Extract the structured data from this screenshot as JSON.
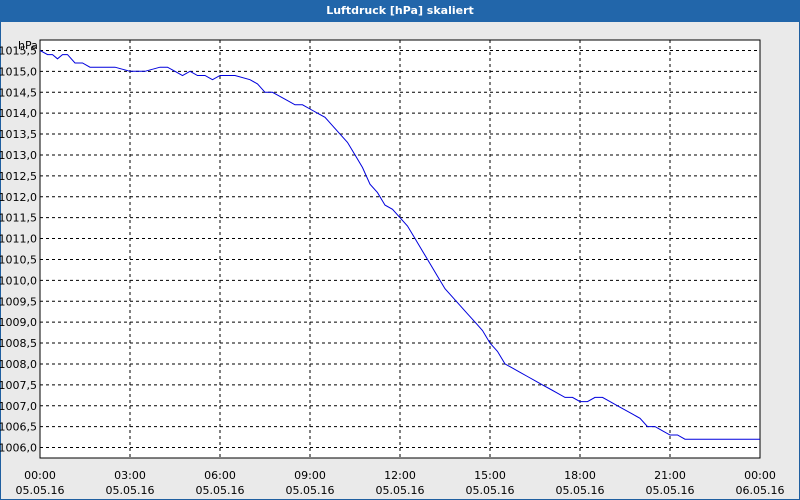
{
  "window": {
    "title": "Luftdruck [hPa] skaliert"
  },
  "chart_data": {
    "type": "line",
    "title": "Luftdruck [hPa] skaliert",
    "ylabel": "hPa",
    "xlabel": "",
    "ylim": [
      1005.75,
      1015.75
    ],
    "xlim": [
      "05.05.16 00:00",
      "06.05.16 00:00"
    ],
    "grid": true,
    "y_ticks": [
      "1006,0",
      "1006,5",
      "1007,0",
      "1007,5",
      "1008,0",
      "1008,5",
      "1009,0",
      "1009,5",
      "1010,0",
      "1010,5",
      "1011,0",
      "1011,5",
      "1012,0",
      "1012,5",
      "1013,0",
      "1013,5",
      "1014,0",
      "1014,5",
      "1015,0",
      "1015,5"
    ],
    "x_ticks": [
      {
        "time": "00:00",
        "date": "05.05.16"
      },
      {
        "time": "03:00",
        "date": "05.05.16"
      },
      {
        "time": "06:00",
        "date": "05.05.16"
      },
      {
        "time": "09:00",
        "date": "05.05.16"
      },
      {
        "time": "12:00",
        "date": "05.05.16"
      },
      {
        "time": "15:00",
        "date": "05.05.16"
      },
      {
        "time": "18:00",
        "date": "05.05.16"
      },
      {
        "time": "21:00",
        "date": "05.05.16"
      },
      {
        "time": "00:00",
        "date": "06.05.16"
      }
    ],
    "series": [
      {
        "color": "#0000dd",
        "x": [
          "05.05.16 00:00",
          "05.05.16 00:15",
          "05.05.16 00:25",
          "05.05.16 00:35",
          "05.05.16 00:45",
          "05.05.16 00:55",
          "05.05.16 01:10",
          "05.05.16 01:25",
          "05.05.16 01:40",
          "05.05.16 02:00",
          "05.05.16 02:30",
          "05.05.16 03:00",
          "05.05.16 03:30",
          "05.05.16 04:00",
          "05.05.16 04:15",
          "05.05.16 04:30",
          "05.05.16 04:45",
          "05.05.16 05:00",
          "05.05.16 05:15",
          "05.05.16 05:30",
          "05.05.16 05:45",
          "05.05.16 06:00",
          "05.05.16 06:15",
          "05.05.16 06:30",
          "05.05.16 07:00",
          "05.05.16 07:15",
          "05.05.16 07:30",
          "05.05.16 07:45",
          "05.05.16 08:00",
          "05.05.16 08:15",
          "05.05.16 08:30",
          "05.05.16 08:45",
          "05.05.16 09:00",
          "05.05.16 09:15",
          "05.05.16 09:30",
          "05.05.16 09:45",
          "05.05.16 10:00",
          "05.05.16 10:15",
          "05.05.16 10:30",
          "05.05.16 10:45",
          "05.05.16 11:00",
          "05.05.16 11:15",
          "05.05.16 11:30",
          "05.05.16 11:45",
          "05.05.16 12:00",
          "05.05.16 12:15",
          "05.05.16 12:30",
          "05.05.16 12:45",
          "05.05.16 13:00",
          "05.05.16 13:15",
          "05.05.16 13:30",
          "05.05.16 13:45",
          "05.05.16 14:00",
          "05.05.16 14:15",
          "05.05.16 14:30",
          "05.05.16 14:45",
          "05.05.16 15:00",
          "05.05.16 15:15",
          "05.05.16 15:30",
          "05.05.16 15:45",
          "05.05.16 16:00",
          "05.05.16 16:15",
          "05.05.16 16:30",
          "05.05.16 16:45",
          "05.05.16 17:00",
          "05.05.16 17:15",
          "05.05.16 17:30",
          "05.05.16 17:45",
          "05.05.16 18:00",
          "05.05.16 18:15",
          "05.05.16 18:30",
          "05.05.16 18:45",
          "05.05.16 19:00",
          "05.05.16 19:15",
          "05.05.16 19:30",
          "05.05.16 19:45",
          "05.05.16 20:00",
          "05.05.16 20:15",
          "05.05.16 20:30",
          "05.05.16 20:45",
          "05.05.16 21:00",
          "05.05.16 21:15",
          "05.05.16 21:30",
          "05.05.16 21:45",
          "05.05.16 22:00",
          "05.05.16 22:15",
          "05.05.16 22:30",
          "05.05.16 22:45",
          "05.05.16 23:00",
          "05.05.16 23:15",
          "05.05.16 23:30",
          "05.05.16 23:45",
          "06.05.16 00:00"
        ],
        "y": [
          1015.5,
          1015.4,
          1015.4,
          1015.3,
          1015.4,
          1015.4,
          1015.2,
          1015.2,
          1015.1,
          1015.1,
          1015.1,
          1015.0,
          1015.0,
          1015.1,
          1015.1,
          1015.0,
          1014.9,
          1015.0,
          1014.9,
          1014.9,
          1014.8,
          1014.9,
          1014.9,
          1014.9,
          1014.8,
          1014.7,
          1014.5,
          1014.5,
          1014.4,
          1014.3,
          1014.2,
          1014.2,
          1014.1,
          1014.0,
          1013.9,
          1013.7,
          1013.5,
          1013.3,
          1013.0,
          1012.7,
          1012.3,
          1012.1,
          1011.8,
          1011.7,
          1011.5,
          1011.3,
          1011.0,
          1010.7,
          1010.4,
          1010.1,
          1009.8,
          1009.6,
          1009.4,
          1009.2,
          1009.0,
          1008.8,
          1008.5,
          1008.3,
          1008.0,
          1007.9,
          1007.8,
          1007.7,
          1007.6,
          1007.5,
          1007.4,
          1007.3,
          1007.2,
          1007.2,
          1007.1,
          1007.1,
          1007.2,
          1007.2,
          1007.1,
          1007.0,
          1006.9,
          1006.8,
          1006.7,
          1006.5,
          1006.5,
          1006.4,
          1006.3,
          1006.3,
          1006.2,
          1006.2,
          1006.2,
          1006.2,
          1006.2,
          1006.2,
          1006.2,
          1006.2,
          1006.2,
          1006.2,
          1006.2
        ]
      }
    ]
  }
}
